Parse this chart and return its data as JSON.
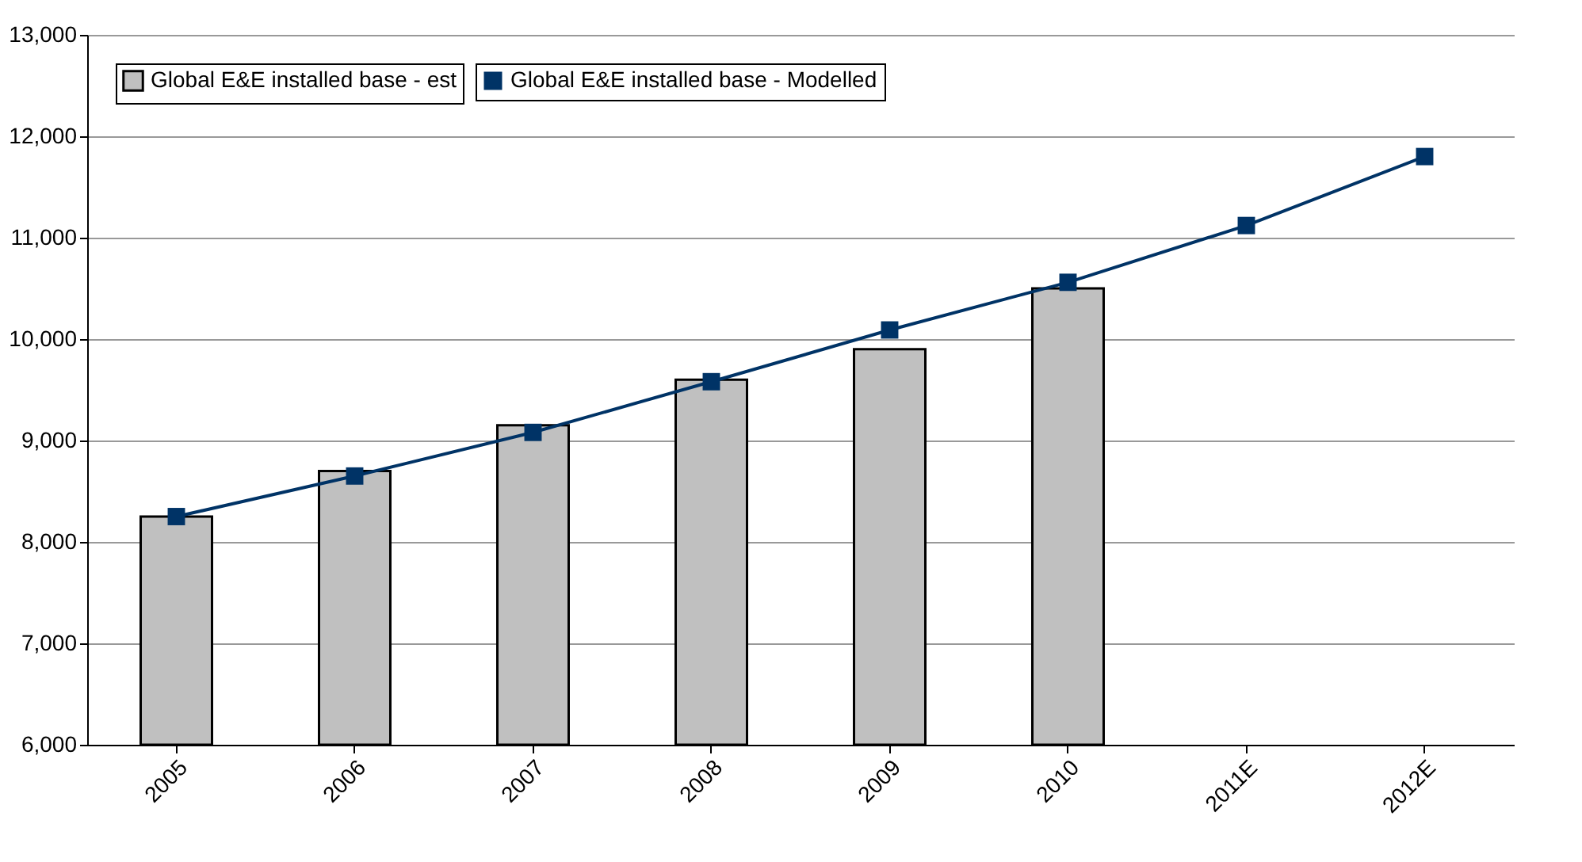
{
  "chart_data": {
    "type": "bar",
    "categories": [
      "2005",
      "2006",
      "2007",
      "2008",
      "2009",
      "2010",
      "2011E",
      "2012E"
    ],
    "series": [
      {
        "name": "Global E&E installed base - est",
        "color": "#c0c0c0",
        "values": [
          8250,
          8700,
          9150,
          9600,
          9900,
          10500,
          null,
          null
        ]
      },
      {
        "name": "Global E&E installed base - Modelled",
        "type": "line",
        "color": "#003366",
        "marker": "square",
        "values": [
          8250,
          8650,
          9080,
          9580,
          10090,
          10560,
          11120,
          11800
        ]
      }
    ],
    "ylim": [
      6000,
      13000
    ],
    "yticks": [
      {
        "value": 6000,
        "label": "6,000"
      },
      {
        "value": 7000,
        "label": "7,000"
      },
      {
        "value": 8000,
        "label": "8,000"
      },
      {
        "value": 9000,
        "label": "9,000"
      },
      {
        "value": 10000,
        "label": "10,000"
      },
      {
        "value": 11000,
        "label": "11,000"
      },
      {
        "value": 12000,
        "label": "12,000"
      },
      {
        "value": 13000,
        "label": "13,000"
      }
    ],
    "grid": "y",
    "legend": "top left"
  }
}
